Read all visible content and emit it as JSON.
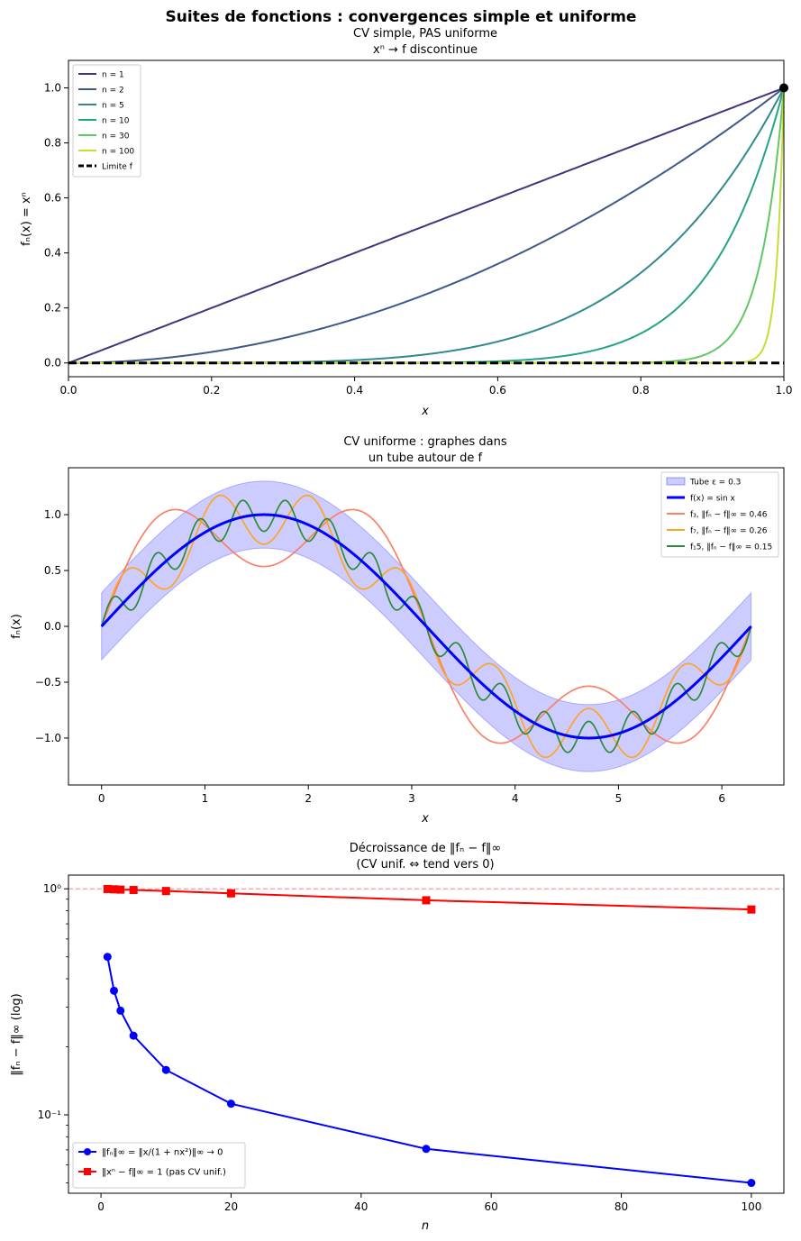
{
  "figure_title": "Suites de fonctions : convergences simple et uniforme",
  "chart_data": [
    {
      "type": "line",
      "title_line1": "CV simple, PAS uniforme",
      "title_line2": "xⁿ → f discontinue",
      "xlabel": "x",
      "ylabel": "fₙ(x) = xⁿ",
      "xlim": [
        0,
        1
      ],
      "ylim": [
        -0.05,
        1.1
      ],
      "xticks": [
        0,
        0.2,
        0.4,
        0.6,
        0.8,
        1.0
      ],
      "xtick_labels": [
        "0.0",
        "0.2",
        "0.4",
        "0.6",
        "0.8",
        "1.0"
      ],
      "yticks": [
        0,
        0.2,
        0.4,
        0.6,
        0.8,
        1.0
      ],
      "ytick_labels": [
        "0.0",
        "0.2",
        "0.4",
        "0.6",
        "0.8",
        "1.0"
      ],
      "legend_position": "upper-left",
      "series": [
        {
          "name": "n = 1",
          "n": 1,
          "color": "#46327e"
        },
        {
          "name": "n = 2",
          "n": 2,
          "color": "#3e5989"
        },
        {
          "name": "n = 5",
          "n": 5,
          "color": "#31888e"
        },
        {
          "name": "n = 10",
          "n": 10,
          "color": "#25a386"
        },
        {
          "name": "n = 30",
          "n": 30,
          "color": "#5ec962"
        },
        {
          "name": "n = 100",
          "n": 100,
          "color": "#c8dd34"
        }
      ],
      "limit_label": "Limite f",
      "limit_point": [
        1,
        1
      ]
    },
    {
      "type": "line",
      "title_line1": "CV uniforme : graphes dans",
      "title_line2": "un tube autour de f",
      "xlabel": "x",
      "ylabel": "fₙ(x)",
      "xlim": [
        -0.32,
        6.6
      ],
      "ylim": [
        -1.42,
        1.42
      ],
      "xticks": [
        0,
        1,
        2,
        3,
        4,
        5,
        6
      ],
      "xtick_labels": [
        "0",
        "1",
        "2",
        "3",
        "4",
        "5",
        "6"
      ],
      "yticks": [
        -1.0,
        -0.5,
        0.0,
        0.5,
        1.0
      ],
      "ytick_labels": [
        "−1.0",
        "−0.5",
        "0.0",
        "0.5",
        "1.0"
      ],
      "legend_position": "upper-right",
      "epsilon": 0.3,
      "tube_label": "Tube ε = 0.3",
      "base_label": "f(x) = sin x",
      "series": [
        {
          "name": "f₃, ‖fₙ − f‖∞ = 0.46",
          "k": 3,
          "amp": 0.4642,
          "color": "#fa8066"
        },
        {
          "name": "f₇, ‖fₙ − f‖∞ = 0.26",
          "k": 7,
          "amp": 0.2646,
          "color": "#ffa423"
        },
        {
          "name": "f₁5, ‖fₙ − f‖∞ = 0.15",
          "k": 15,
          "amp": 0.1491,
          "color": "#2e8b35"
        }
      ]
    },
    {
      "type": "line",
      "yscale": "log",
      "title_line1": "Décroissance de ‖fₙ − f‖∞",
      "title_line2": "(CV unif. ⇔ tend vers 0)",
      "xlabel": "n",
      "ylabel": "‖fₙ − f‖∞ (log)",
      "xlim": [
        -5,
        105
      ],
      "ylim": [
        0.045,
        1.15
      ],
      "xticks": [
        0,
        20,
        40,
        60,
        80,
        100
      ],
      "xtick_labels": [
        "0",
        "20",
        "40",
        "60",
        "80",
        "100"
      ],
      "yticks": [
        0.1,
        1.0
      ],
      "ytick_labels": [
        "10⁻¹",
        "10⁰"
      ],
      "legend_position": "lower-left",
      "reference_line": 1.0,
      "n": [
        1,
        2,
        3,
        5,
        10,
        20,
        50,
        100
      ],
      "series": [
        {
          "name": "‖fₙ‖∞ = ‖x/(1 + nx²)‖∞ → 0",
          "color": "#0000ff",
          "marker": "circle",
          "values": [
            0.5,
            0.354,
            0.289,
            0.224,
            0.158,
            0.112,
            0.0707,
            0.05
          ]
        },
        {
          "name": "‖xⁿ − f‖∞ = 1 (pas CV unif.)",
          "color": "#ff0000",
          "marker": "square",
          "values": [
            0.998,
            0.995,
            0.992,
            0.988,
            0.978,
            0.955,
            0.89,
            0.81
          ]
        }
      ]
    }
  ]
}
